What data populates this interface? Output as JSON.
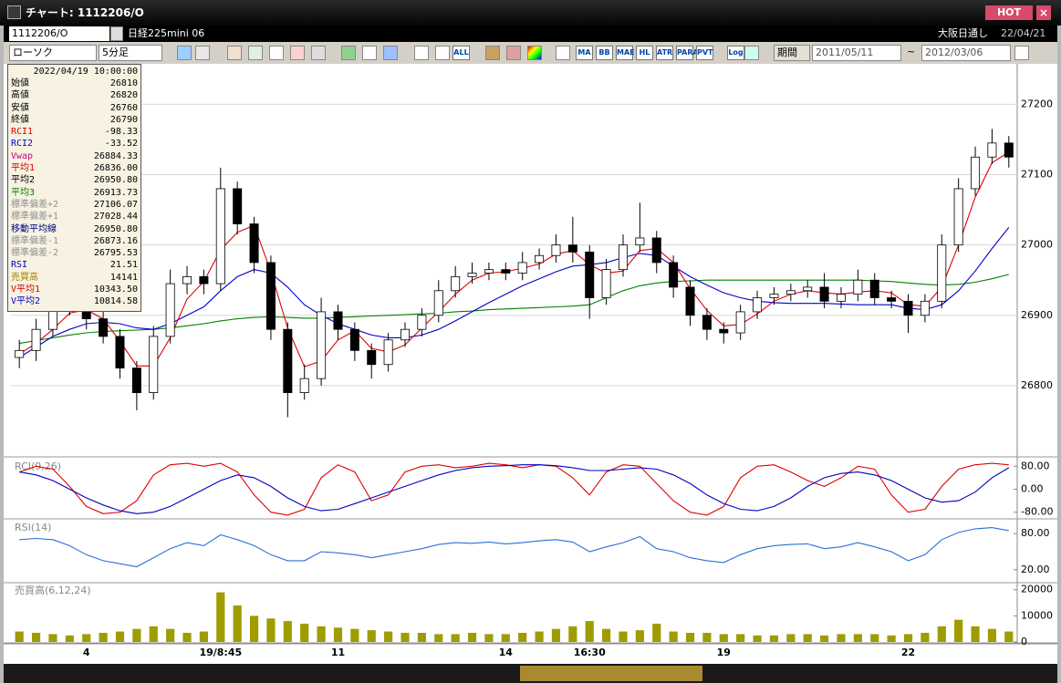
{
  "window": {
    "title": "チャート: 1112206/O",
    "hot": "HOT",
    "close": "×"
  },
  "header": {
    "code": "1112206/O",
    "name": "日経225mini 06",
    "session": "大阪日通し",
    "date": "22/04/21"
  },
  "toolbar": {
    "chart_type": "ローソク",
    "interval": "5分足",
    "buttons": [
      "ALL",
      "MA",
      "BB",
      "MAE",
      "HL",
      "ATR",
      "PARA",
      "PVT",
      "Log"
    ],
    "period_label": "期間",
    "from": "2011/05/11",
    "tilde": "~",
    "to": "2012/03/06"
  },
  "info_panel": {
    "datetime": "2022/04/19 10:00:00",
    "rows": [
      {
        "label": "始値",
        "value": "26810",
        "color": "#000000"
      },
      {
        "label": "高値",
        "value": "26820",
        "color": "#000000"
      },
      {
        "label": "安値",
        "value": "26760",
        "color": "#000000"
      },
      {
        "label": "終値",
        "value": "26790",
        "color": "#000000"
      },
      {
        "label": "RCI1",
        "value": "-98.33",
        "color": "#d00000"
      },
      {
        "label": "RCI2",
        "value": "-33.52",
        "color": "#0000c8"
      },
      {
        "label": "Vwap",
        "value": "26884.33",
        "color": "#d0007a"
      },
      {
        "label": "平均1",
        "value": "26836.00",
        "color": "#d00000"
      },
      {
        "label": "平均2",
        "value": "26950.80",
        "color": "#000000"
      },
      {
        "label": "平均3",
        "value": "26913.73",
        "color": "#008000"
      },
      {
        "label": "標準偏差+2",
        "value": "27106.07",
        "color": "#909090"
      },
      {
        "label": "標準偏差+1",
        "value": "27028.44",
        "color": "#909090"
      },
      {
        "label": "移動平均線",
        "value": "26950.80",
        "color": "#000080"
      },
      {
        "label": "標準偏差-1",
        "value": "26873.16",
        "color": "#909090"
      },
      {
        "label": "標準偏差-2",
        "value": "26795.53",
        "color": "#909090"
      },
      {
        "label": "RSI",
        "value": "21.51",
        "color": "#0000c8"
      },
      {
        "label": "売買高",
        "value": "14141",
        "color": "#a08000"
      },
      {
        "label": "V平均1",
        "value": "10343.50",
        "color": "#d00000"
      },
      {
        "label": "V平均2",
        "value": "10814.58",
        "color": "#0000c8"
      }
    ]
  },
  "chart_data": [
    {
      "type": "candlestick",
      "categories": [
        null,
        null,
        null,
        null,
        "4",
        null,
        null,
        null,
        null,
        null,
        null,
        null,
        "19/8:45",
        null,
        null,
        null,
        null,
        null,
        null,
        "11",
        null,
        null,
        null,
        null,
        null,
        null,
        null,
        null,
        null,
        "14",
        null,
        null,
        null,
        null,
        "16:30",
        null,
        null,
        null,
        null,
        null,
        null,
        null,
        "19",
        null,
        null,
        null,
        null,
        null,
        null,
        null,
        null,
        null,
        null,
        "22",
        null,
        null,
        null,
        null,
        null,
        null
      ],
      "open": [
        26840,
        26850,
        26880,
        26910,
        26920,
        26895,
        26870,
        26825,
        26790,
        26870,
        26945,
        26955,
        26945,
        27080,
        27030,
        26975,
        26880,
        26790,
        26810,
        26905,
        26880,
        26850,
        26830,
        26865,
        26880,
        26900,
        26935,
        26955,
        26960,
        26965,
        26960,
        26975,
        26985,
        27000,
        26990,
        26925,
        26965,
        27000,
        27010,
        26975,
        26940,
        26900,
        26880,
        26875,
        26905,
        26925,
        26930,
        26935,
        26940,
        26920,
        26930,
        26950,
        26925,
        26920,
        26900,
        26920,
        27000,
        27080,
        27125,
        27145
      ],
      "high": [
        26865,
        26895,
        26925,
        26935,
        26930,
        26905,
        26880,
        26835,
        26885,
        26965,
        26970,
        26965,
        27110,
        27090,
        27040,
        26985,
        26890,
        26830,
        26925,
        26915,
        26890,
        26860,
        26875,
        26890,
        26910,
        26950,
        26970,
        26975,
        26975,
        26975,
        26990,
        26995,
        27015,
        27040,
        27000,
        26980,
        27015,
        27060,
        27020,
        26985,
        26950,
        26910,
        26890,
        26915,
        26935,
        26940,
        26945,
        26950,
        26960,
        26940,
        26965,
        26960,
        26935,
        26930,
        26930,
        27015,
        27095,
        27140,
        27165,
        27155
      ],
      "low": [
        26825,
        26835,
        26870,
        26900,
        26880,
        26860,
        26810,
        26765,
        26780,
        26860,
        26930,
        26930,
        26935,
        27015,
        26960,
        26865,
        26755,
        26780,
        26800,
        26865,
        26835,
        26810,
        26820,
        26855,
        26870,
        26890,
        26925,
        26945,
        26950,
        26950,
        26950,
        26965,
        26975,
        26975,
        26895,
        26915,
        26955,
        26990,
        26960,
        26925,
        26885,
        26865,
        26860,
        26865,
        26895,
        26915,
        26920,
        26925,
        26910,
        26910,
        26920,
        26915,
        26910,
        26875,
        26890,
        26910,
        26990,
        27070,
        27115,
        27110
      ],
      "close": [
        26850,
        26880,
        26910,
        26920,
        26895,
        26870,
        26825,
        26790,
        26870,
        26945,
        26955,
        26945,
        27080,
        27030,
        26975,
        26880,
        26790,
        26810,
        26905,
        26880,
        26850,
        26830,
        26865,
        26880,
        26900,
        26935,
        26955,
        26960,
        26965,
        26960,
        26975,
        26985,
        27000,
        26990,
        26925,
        26965,
        27000,
        27010,
        26975,
        26940,
        26900,
        26880,
        26875,
        26905,
        26925,
        26930,
        26935,
        26940,
        26920,
        26930,
        26950,
        26925,
        26920,
        26900,
        26920,
        27000,
        27080,
        27125,
        27145,
        27125
      ],
      "series": [
        {
          "color": "#008000",
          "values": [
            26860,
            26864,
            26868,
            26872,
            26875,
            26877,
            26878,
            26879,
            26880,
            26882,
            26885,
            26888,
            26892,
            26895,
            26897,
            26898,
            26897,
            26896,
            26896,
            26897,
            26898,
            26899,
            26900,
            26901,
            26902,
            26903,
            26905,
            26906,
            26908,
            26909,
            26910,
            26911,
            26912,
            26913,
            26915,
            26925,
            26935,
            26942,
            26946,
            26948,
            26949,
            26950,
            26950,
            26950,
            26950,
            26950,
            26950,
            26950,
            26950,
            26950,
            26950,
            26949,
            26948,
            26946,
            26944,
            26943,
            26944,
            26947,
            26952,
            26958
          ]
        },
        {
          "color": "#0000c8",
          "values": [
            26840,
            26855,
            26870,
            26880,
            26888,
            26890,
            26888,
            26882,
            26880,
            26888,
            26900,
            26912,
            26935,
            26955,
            26965,
            26960,
            26940,
            26915,
            26900,
            26888,
            26880,
            26872,
            26868,
            26868,
            26872,
            26880,
            26892,
            26905,
            26918,
            26930,
            26942,
            26952,
            26962,
            26970,
            26972,
            26975,
            26982,
            26988,
            26985,
            26970,
            26955,
            26943,
            26932,
            26925,
            26920,
            26918,
            26917,
            26917,
            26917,
            26916,
            26915,
            26915,
            26915,
            26910,
            26908,
            26915,
            26935,
            26963,
            26995,
            27025
          ]
        },
        {
          "color": "#e00000",
          "values": [
            26845,
            26860,
            26880,
            26903,
            26908,
            26895,
            26863,
            26828,
            26828,
            26868,
            26923,
            26948,
            26993,
            27018,
            27028,
            26962,
            26882,
            26827,
            26835,
            26865,
            26878,
            26853,
            26848,
            26858,
            26882,
            26905,
            26930,
            26950,
            26960,
            26962,
            26967,
            26973,
            26987,
            26992,
            26972,
            26960,
            26963,
            26992,
            26995,
            26975,
            26938,
            26907,
            26885,
            26887,
            26902,
            26920,
            26930,
            26935,
            26932,
            26930,
            26933,
            26935,
            26932,
            26915,
            26913,
            26940,
            27000,
            27068,
            27117,
            27132
          ]
        }
      ],
      "ylim": [
        26700,
        27255
      ],
      "yticks": [
        26800,
        26900,
        27000,
        27100,
        27200
      ],
      "grid": true
    },
    {
      "type": "line",
      "title": "RCI(9,26)",
      "series": [
        {
          "color": "#e00000",
          "values": [
            60,
            80,
            70,
            10,
            -60,
            -85,
            -80,
            -40,
            50,
            85,
            90,
            80,
            90,
            60,
            -20,
            -80,
            -90,
            -70,
            40,
            85,
            60,
            -40,
            -20,
            60,
            80,
            85,
            75,
            80,
            90,
            85,
            75,
            85,
            80,
            40,
            -20,
            60,
            85,
            80,
            20,
            -40,
            -80,
            -90,
            -60,
            40,
            80,
            85,
            60,
            30,
            10,
            40,
            80,
            70,
            -20,
            -80,
            -70,
            10,
            70,
            85,
            90,
            85
          ]
        },
        {
          "color": "#0000c0",
          "values": [
            60,
            50,
            30,
            0,
            -30,
            -55,
            -75,
            -85,
            -80,
            -60,
            -30,
            0,
            30,
            50,
            40,
            10,
            -30,
            -60,
            -75,
            -70,
            -50,
            -30,
            -10,
            10,
            30,
            50,
            65,
            75,
            80,
            82,
            85,
            85,
            82,
            75,
            65,
            65,
            70,
            75,
            70,
            50,
            20,
            -20,
            -50,
            -70,
            -75,
            -60,
            -30,
            10,
            40,
            55,
            60,
            50,
            30,
            0,
            -30,
            -45,
            -40,
            -10,
            40,
            75
          ]
        }
      ],
      "ylim": [
        -100,
        100
      ],
      "yticks": [
        {
          "value": 80,
          "label": "80.00"
        },
        {
          "value": 0,
          "label": "0.00"
        },
        {
          "value": -80,
          "label": "-80.00"
        }
      ],
      "grid": false
    },
    {
      "type": "line",
      "title": "RSI(14)",
      "series": [
        {
          "color": "#2a6fd8",
          "values": [
            70,
            72,
            70,
            60,
            45,
            35,
            30,
            25,
            40,
            55,
            65,
            60,
            78,
            70,
            60,
            45,
            35,
            35,
            50,
            48,
            45,
            40,
            45,
            50,
            55,
            62,
            65,
            64,
            66,
            63,
            65,
            68,
            70,
            66,
            50,
            58,
            65,
            75,
            55,
            50,
            40,
            35,
            32,
            45,
            55,
            60,
            62,
            63,
            55,
            58,
            65,
            58,
            50,
            35,
            45,
            70,
            82,
            88,
            90,
            85
          ]
        }
      ],
      "ylim": [
        0,
        100
      ],
      "yticks": [
        {
          "value": 80,
          "label": "80.00"
        },
        {
          "value": 20,
          "label": "20.00"
        }
      ],
      "grid": false
    },
    {
      "type": "bar",
      "title": "売買高(6,12,24)",
      "color": "#a09c00",
      "values": [
        4000,
        3500,
        3000,
        2500,
        3000,
        3500,
        4000,
        5000,
        6000,
        5000,
        3500,
        4000,
        19000,
        14000,
        10000,
        9000,
        8000,
        7000,
        6000,
        5500,
        5000,
        4500,
        4000,
        3500,
        3500,
        3000,
        3000,
        3500,
        3000,
        3000,
        3500,
        4000,
        5000,
        6000,
        8000,
        5000,
        4000,
        4500,
        7000,
        4000,
        3500,
        3500,
        3000,
        3000,
        2500,
        2500,
        3000,
        3000,
        2500,
        3000,
        3000,
        3000,
        2500,
        3000,
        3500,
        6000,
        8500,
        6000,
        5000,
        4000
      ],
      "ylim": [
        0,
        22000
      ],
      "yticks": [
        0,
        10000,
        20000
      ],
      "grid": false
    }
  ]
}
